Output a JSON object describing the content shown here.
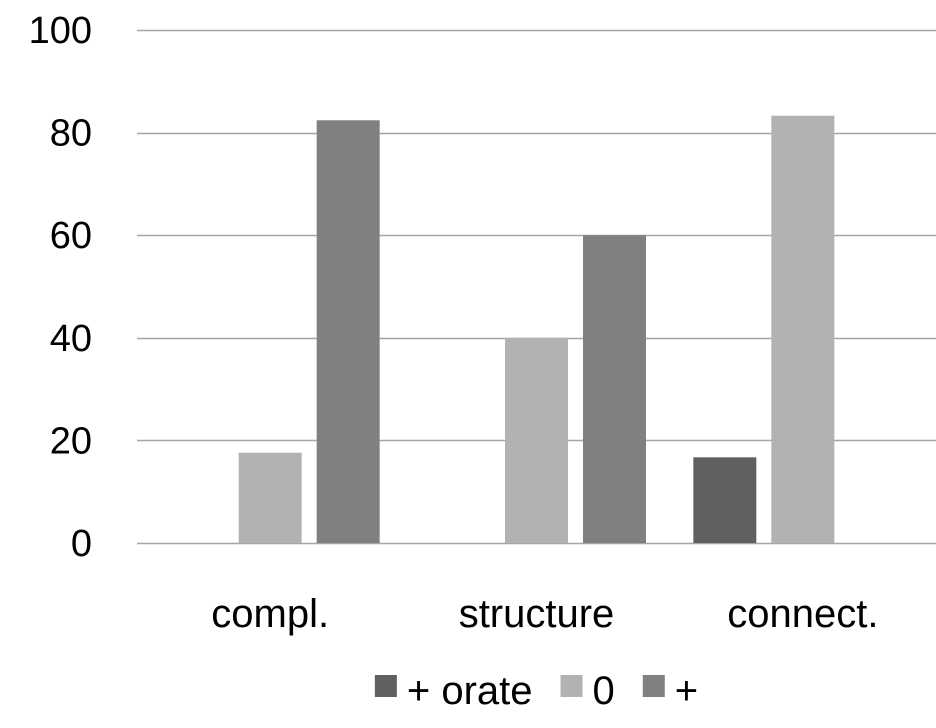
{
  "chart_data": {
    "type": "bar",
    "categories": [
      "compl.",
      "structure",
      "connect."
    ],
    "series": [
      {
        "name": "+ orate",
        "values": [
          0,
          0,
          16.7
        ],
        "color": "#606060"
      },
      {
        "name": "0",
        "values": [
          17.6,
          40,
          83.3
        ],
        "color": "#b2b2b2"
      },
      {
        "name": "+",
        "values": [
          82.4,
          60,
          0
        ],
        "color": "#808080"
      }
    ],
    "yticks": [
      "0",
      "20",
      "40",
      "60",
      "80",
      "100"
    ],
    "ylim": [
      0,
      100
    ],
    "grid": true,
    "gridline_color": "#a6a6a6",
    "legend_position": "bottom",
    "title": "",
    "xlabel": "",
    "ylabel": ""
  }
}
